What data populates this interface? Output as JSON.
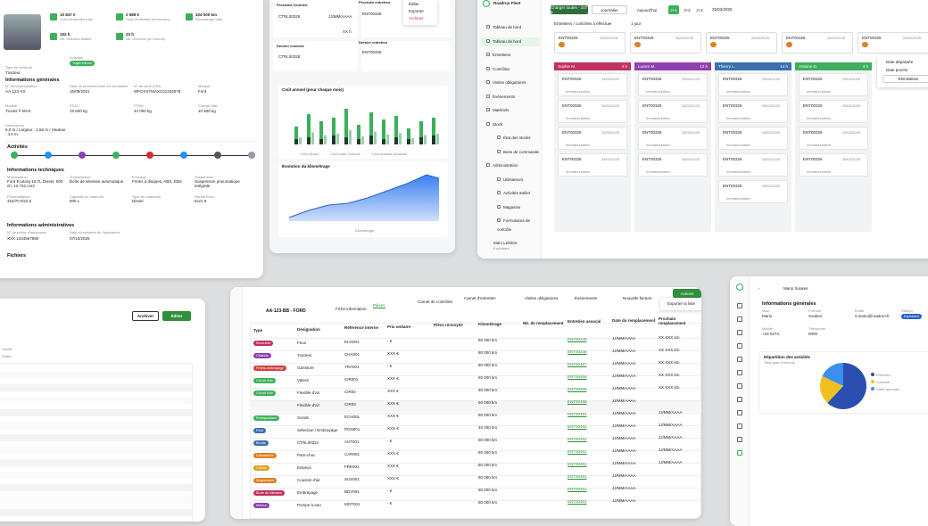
{
  "vehicle": {
    "stats": [
      {
        "v": "10 847 €",
        "l": "Coût d'entretien total"
      },
      {
        "v": "2 589 €",
        "l": "Coût d'entretien (en heures)"
      },
      {
        "v": "324 000 km",
        "l": "Kilométrage total"
      },
      {
        "v": "152 h",
        "l": "Nb. d'heures totales"
      },
      {
        "v": "23 h",
        "l": "Nb. d'heures (en heures)"
      }
    ],
    "type_label": "Type de véhicule",
    "type_value": "Tracteur",
    "activity_label": "Activités",
    "activity_badge": "Trajet interne",
    "general_title": "Informations générales",
    "fields": [
      {
        "l": "N° d'immatriculation",
        "v": "AA-123-XX"
      },
      {
        "l": "Date de première mise en circulation",
        "v": "15/09/2021"
      },
      {
        "l": "N° de série (VIN)",
        "v": "WFOXXTMAXC01234578"
      },
      {
        "l": "Marque",
        "v": "Ford"
      },
      {
        "l": "Modèle",
        "v": "Trucks F-MAX"
      },
      {
        "l": "PTAC",
        "v": "19 500 kg"
      },
      {
        "l": "PTRA",
        "v": "44 000 kg"
      },
      {
        "l": "Charge utile",
        "v": "10 500 kg"
      }
    ],
    "dims_label": "Dimensions",
    "dims_value": "6,0 m / Largeur : 2,55 m / Hauteur : 4,0 m",
    "activities_title": "Activités",
    "tech_title": "Informations techniques",
    "tech": [
      {
        "l": "Motorisation",
        "v": "Ford Ecotorq 12.7L Diesel, 500 ch, 12 742 cm3"
      },
      {
        "l": "Transmission",
        "v": "Boîte de vitesses automatique"
      },
      {
        "l": "Freinage",
        "v": "Freins à disques, ABS, EBS"
      },
      {
        "l": "Suspension",
        "v": "Suspension pneumatique intégrale"
      },
      {
        "l": "Pneumatiques",
        "v": "315/70 R22.5"
      },
      {
        "l": "Capacité du réservoir",
        "v": "800 L"
      },
      {
        "l": "Type de carburant",
        "v": "Diesel"
      },
      {
        "l": "Norme Euro",
        "v": "Euro 6"
      }
    ],
    "admin_title": "Informations administratives",
    "admin": [
      {
        "l": "N° de police d'assurance",
        "v": "XXX 1234567890"
      },
      {
        "l": "Date d'expiration de l'assurance",
        "v": "07/10/2025"
      }
    ],
    "files_title": "Fichiers"
  },
  "maint": {
    "next_maint": "Prochain Contrôle",
    "next_maint_id": "CTRL00328",
    "next_maint_date": "JJ/MM/AAAA",
    "next_maint_h": "XX h",
    "next_rep": "Prochain entretien",
    "next_rep_id": "ENT00328",
    "next_rep_date": "JJ/MM/AAAA",
    "menu": [
      "Éditer",
      "Exporter",
      "Archiver"
    ],
    "last_ctrl": "Dernier contrôle",
    "last_ctrl_id": "CTRL00328",
    "last_ent": "Dernier entretien",
    "last_ent_id": "ENT00328",
    "costs_title": "Coût annuel (pour chaque mois)",
    "costs_legend": [
      "Coût pièces",
      "Coût main d'œuvre",
      "Coût activités annexes"
    ],
    "km_title": "Évolution du kilométrage",
    "km_legend": "Kilométrage"
  },
  "kanban": {
    "app": "Roadrun Fleet",
    "filter": "Charger toutes - 107 ●",
    "select": "Journalier",
    "today": "Aujourd'hui",
    "d1": "J+1",
    "d2": "J+2",
    "d3": "J+3",
    "date": "25/02/2025",
    "period": "1 jour",
    "sub": "Entretiens / contrôles à effectuer",
    "nav": [
      "Tableau de bord",
      "Tableau de bord",
      "Entretiens",
      "Contrôles",
      "Visites obligatoires",
      "Événements",
      "Matériels",
      "Stock",
      "État des stocks",
      "Bons de commande",
      "Administration",
      "Utilisateurs",
      "Activités atelier",
      "Magasins",
      "Formulaires de contrôle"
    ],
    "user": "Marc Lefebre",
    "user_role": "Exploitant",
    "cols": [
      {
        "name": "Sophie M.",
        "c": "#c03060",
        "h": "4 h"
      },
      {
        "name": "Lucien M.",
        "c": "#8f3fb0",
        "h": "12 h"
      },
      {
        "name": "Thierry L.",
        "c": "#3a6fb0",
        "h": "14 h"
      },
      {
        "name": "Antoine G.",
        "c": "#3cb05a",
        "h": "4 h"
      }
    ],
    "card_id": "ENT00326",
    "card_date": "25/02/2025",
    "card_tag": "Immatriculation",
    "legend": [
      "Date dépassée",
      "Date proche"
    ],
    "legend_btn": "Réinitialiser"
  },
  "parts": {
    "plate": "AA-123-BB - FORD",
    "tabs": [
      "Fiche information",
      "Pièces",
      "Carnet de contrôles",
      "Carnet d'entretien",
      "Visites obligatoires",
      "Événements",
      "Nouvelle facture"
    ],
    "action": "Actions",
    "action_menu": "Exporter la liste",
    "headers": [
      "Type",
      "Désignation",
      "Référence interne",
      "Prix unitaire",
      "Pièce renvoyée",
      "Kilométrage",
      "Nb. de remplacement",
      "Entretien associé",
      "Date du remplacement",
      "Prochain remplacement"
    ],
    "rows": [
      {
        "t": "Électricité",
        "c": "#c03060",
        "d": "Feux",
        "r": "ELG001",
        "p": "- €",
        "k": "80 000 km",
        "e": "ENT00248",
        "dt": "JJ/MM/AAAA",
        "n": "XX XXX km"
      },
      {
        "t": "Châssis",
        "c": "#8f3fb0",
        "d": "Tracteur",
        "r": "CHA001",
        "p": "XXX €",
        "k": "80 000 km",
        "e": "ENT00248",
        "dt": "JJ/MM/AAAA",
        "n": "XX XXX km"
      },
      {
        "t": "Freins-embrayage",
        "c": "#d04040",
        "d": "Garniture",
        "r": "TRA001",
        "p": "- €",
        "k": "80 000 km",
        "e": "ENT00457",
        "dt": "JJ/MM/AAAA",
        "n": "XX XXX km"
      },
      {
        "t": "Circuit d'air",
        "c": "#3cb05a",
        "d": "Valves",
        "r": "CIR001",
        "p": "XXX €",
        "k": "60 000 km",
        "e": "ENT00466",
        "dt": "JJ/MM/AAAA",
        "n": "XX XXX km"
      },
      {
        "t": "Circuit d'air",
        "c": "#3cb05a",
        "d": "Flexible d'air",
        "r": "CIR02",
        "p": "XXX €",
        "k": "50 000 km",
        "e": "ENT00466",
        "dt": "JJ/MM/AAAA",
        "n": "XX XXX km"
      },
      {
        "t": "",
        "c": "",
        "d": "Flexible d'air",
        "r": "CIR03",
        "p": "XXX €",
        "k": "50 000 km",
        "e": "ENT00466",
        "dt": "JJ/MM/AAAA",
        "n": ""
      },
      {
        "t": "Entrepositaire",
        "c": "#3cb05a",
        "d": "Sonde",
        "r": "ECH001",
        "p": "XXX €",
        "k": "80 000 km",
        "e": "ENT00461",
        "dt": "JJ/MM/AAAA",
        "n": "JJ/MM/AAAA"
      },
      {
        "t": "Pont",
        "c": "#3a6fb0",
        "d": "Sélection / Embrayage",
        "r": "PON001",
        "p": "XXX €",
        "k": "40 000 km",
        "e": "ENT00452",
        "dt": "JJ/MM/AAAA",
        "n": "JJ/MM/AAAA"
      },
      {
        "t": "Bonde",
        "c": "#3a6fb0",
        "d": "CTRL00321",
        "r": "AUT001",
        "p": "- €",
        "k": "80 000 km",
        "e": "ENT00452",
        "dt": "JJ/MM/AAAA",
        "n": "JJ/MM/AAAA"
      },
      {
        "t": "Carrosserie",
        "c": "#e08020",
        "d": "Pare-choc",
        "r": "CAR001",
        "p": "XXX €",
        "k": "80 000 km",
        "e": "ENT00461",
        "dt": "JJ/MM/AAAA",
        "n": "JJ/MM/AAAA"
      },
      {
        "t": "Cabine",
        "c": "#e0a020",
        "d": "Essieux",
        "r": "FRE001",
        "p": "XXX €",
        "k": "80 000 km",
        "e": "ENT00461",
        "dt": "JJ/MM/AAAA",
        "n": "JJ/MM/AAAA"
      },
      {
        "t": "Suspension",
        "c": "#e08020",
        "d": "Coussin d'air",
        "r": "SUS001",
        "p": "XXX €",
        "k": "80 000 km",
        "e": "ENT00461",
        "dt": "JJ/MM/AAAA",
        "n": ""
      },
      {
        "t": "Boîte de vitesses",
        "c": "#c03060",
        "d": "Embrayage",
        "r": "BDV001",
        "p": "- €",
        "k": "80 000 km",
        "e": "ENT00461",
        "dt": "JJ/MM/AAAA",
        "n": ""
      },
      {
        "t": "Moteur",
        "c": "#8f3fb0",
        "d": "Pompe à eau",
        "r": "MOT001",
        "p": "- €",
        "k": "80 000 km",
        "e": "ENT00461",
        "dt": "JJ/MM/AAAA",
        "n": ""
      }
    ]
  },
  "user": {
    "name": "Mario Soukes",
    "general": "Informations générales",
    "f": [
      {
        "l": "Nom",
        "v": "Mario"
      },
      {
        "l": "Prénom",
        "v": "Soukes"
      },
      {
        "l": "Email",
        "v": "s.mario@roadrun.fr"
      },
      {
        "l": "Rôle(s)",
        "v": "Exploitant"
      },
      {
        "l": "Mobile",
        "v": "+33 0274"
      },
      {
        "l": "Téléphone",
        "v": "0000"
      }
    ],
    "activity_title": "Répartition des activités",
    "activity_sub": "Total (pas d'heures)",
    "pie": [
      {
        "name": "Entretien",
        "value": 62,
        "c": "#2a4fb0"
      },
      {
        "name": "Contrôle",
        "value": 20,
        "c": "#f0c020"
      },
      {
        "name": "Visite annuelle",
        "value": 18,
        "c": "#3a8ff0"
      }
    ]
  },
  "left": {
    "archive": "Archiver",
    "edit": "Éditer",
    "lbl1": "Libellé",
    "lbl2": "Statut"
  }
}
